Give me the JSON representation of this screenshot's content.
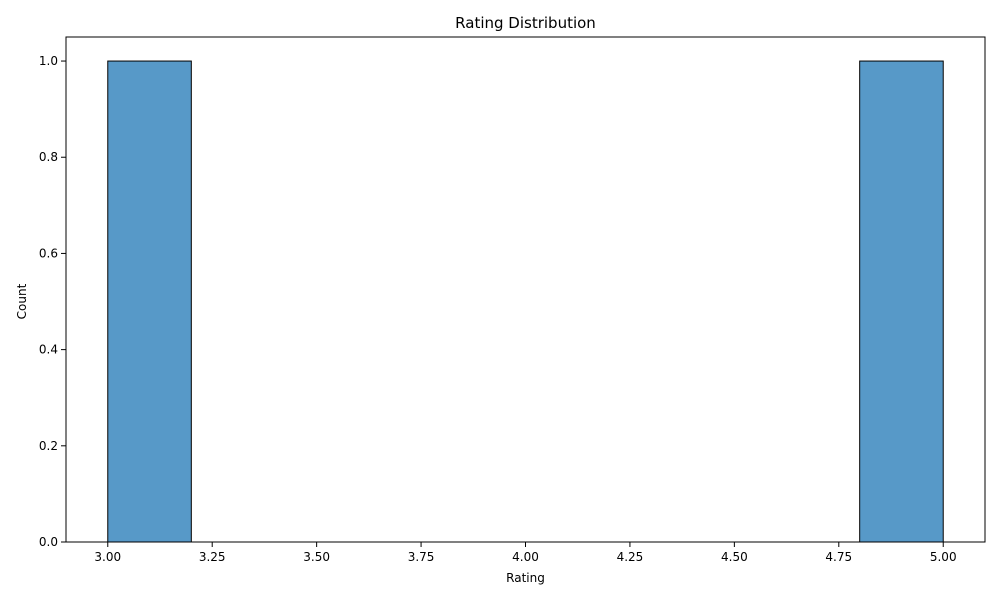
{
  "chart_data": {
    "type": "bar",
    "title": "Rating Distribution",
    "xlabel": "Rating",
    "ylabel": "Count",
    "xlim": [
      2.9,
      5.1
    ],
    "ylim": [
      0,
      1.05
    ],
    "bins": [
      {
        "x0": 3.0,
        "x1": 3.2,
        "count": 1
      },
      {
        "x0": 3.2,
        "x1": 3.4,
        "count": 0
      },
      {
        "x0": 3.4,
        "x1": 3.6,
        "count": 0
      },
      {
        "x0": 3.6,
        "x1": 3.8,
        "count": 0
      },
      {
        "x0": 3.8,
        "x1": 4.0,
        "count": 0
      },
      {
        "x0": 4.0,
        "x1": 4.2,
        "count": 0
      },
      {
        "x0": 4.2,
        "x1": 4.4,
        "count": 0
      },
      {
        "x0": 4.4,
        "x1": 4.6,
        "count": 0
      },
      {
        "x0": 4.6,
        "x1": 4.8,
        "count": 0
      },
      {
        "x0": 4.8,
        "x1": 5.0,
        "count": 1
      }
    ],
    "xticks": [
      3.0,
      3.25,
      3.5,
      3.75,
      4.0,
      4.25,
      4.5,
      4.75,
      5.0
    ],
    "xtick_labels": [
      "3.00",
      "3.25",
      "3.50",
      "3.75",
      "4.00",
      "4.25",
      "4.50",
      "4.75",
      "5.00"
    ],
    "yticks": [
      0.0,
      0.2,
      0.4,
      0.6,
      0.8,
      1.0
    ],
    "ytick_labels": [
      "0.0",
      "0.2",
      "0.4",
      "0.6",
      "0.8",
      "1.0"
    ],
    "grid": false,
    "bar_color": "#5799c8",
    "bar_edge_color": "#000000"
  }
}
